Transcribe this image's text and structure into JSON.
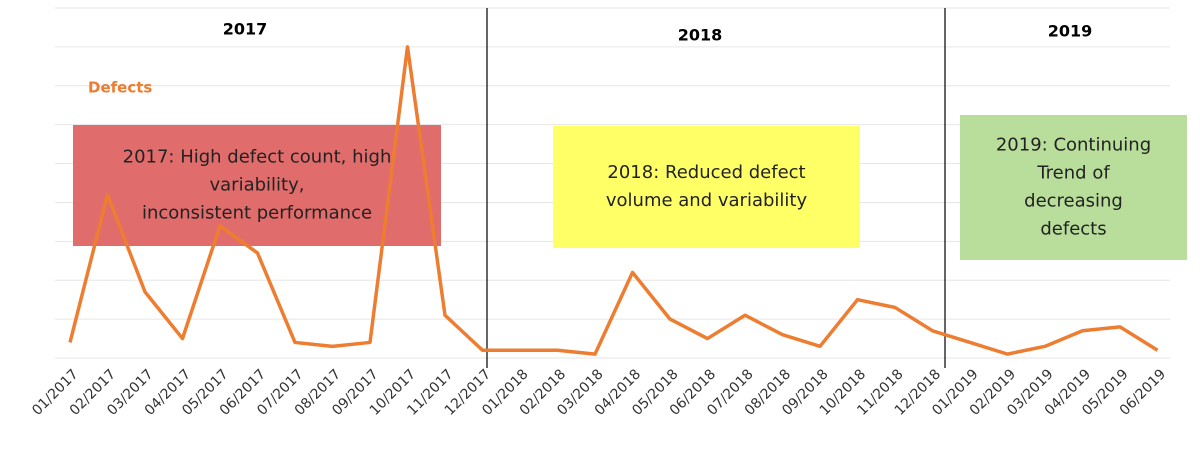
{
  "chart_data": {
    "type": "line",
    "x": [
      "01/2017",
      "02/2017",
      "03/2017",
      "04/2017",
      "05/2017",
      "06/2017",
      "07/2017",
      "08/2017",
      "09/2017",
      "10/2017",
      "11/2017",
      "12/2017",
      "01/2018",
      "02/2018",
      "03/2018",
      "04/2018",
      "05/2018",
      "06/2018",
      "07/2018",
      "08/2018",
      "09/2018",
      "10/2018",
      "11/2018",
      "12/2018",
      "01/2019",
      "02/2019",
      "03/2019",
      "04/2019",
      "05/2019",
      "06/2019"
    ],
    "series": [
      {
        "name": "Defects",
        "color": "#ed7d31",
        "values": [
          0.4,
          4.2,
          1.7,
          0.5,
          3.4,
          2.7,
          0.4,
          0.3,
          0.4,
          8.0,
          1.1,
          0.2,
          0.2,
          0.2,
          0.1,
          2.2,
          1.0,
          0.5,
          1.1,
          0.6,
          0.3,
          1.5,
          1.3,
          0.7,
          0.4,
          0.1,
          0.3,
          0.7,
          0.8,
          0.2
        ]
      }
    ],
    "ylim": [
      0,
      9
    ],
    "yticks": [
      0,
      1,
      2,
      3,
      4,
      5,
      6,
      7,
      8,
      9
    ],
    "grid": true,
    "periods": [
      "2017",
      "2018",
      "2019"
    ],
    "annotations": [
      {
        "lines": [
          "2017: High defect count, high",
          "variability,",
          "inconsistent performance"
        ],
        "color": "#e06c6c"
      },
      {
        "lines": [
          "2018: Reduced defect",
          "volume and variability"
        ],
        "color": "#ffff66"
      },
      {
        "lines": [
          "2019: Continuing",
          "Trend of",
          "decreasing",
          "defects"
        ],
        "color": "#b9de9c"
      }
    ]
  }
}
